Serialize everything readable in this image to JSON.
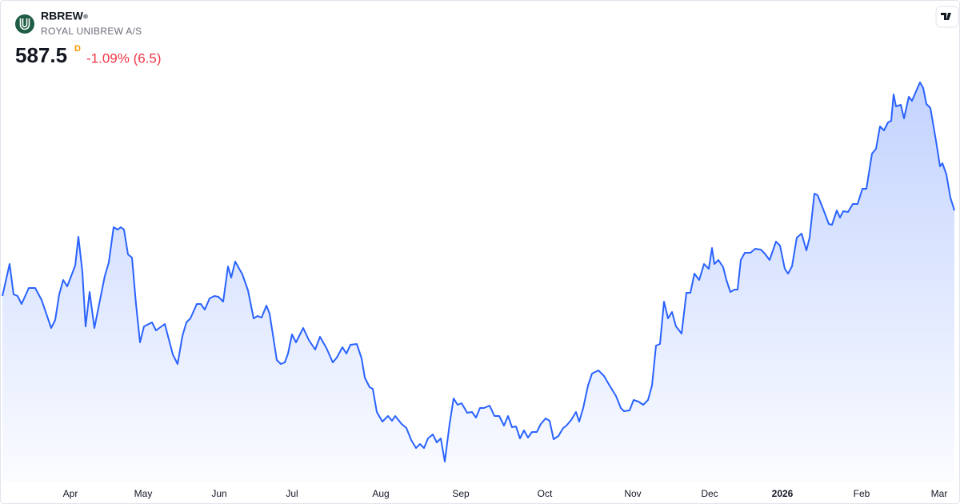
{
  "header": {
    "symbol": "RBREW",
    "name": "ROYAL UNIBREW A/S",
    "price": "587.5",
    "interval": "D",
    "change": "-1.09% (6.5)"
  },
  "chart_data": {
    "type": "area",
    "color": "#2962ff",
    "xlim": [
      0,
      238
    ],
    "ylim": [
      500,
      640
    ],
    "xticks": [
      {
        "value": 17,
        "label": "Apr"
      },
      {
        "value": 35.2,
        "label": "May"
      },
      {
        "value": 54.2,
        "label": "Jun"
      },
      {
        "value": 72.4,
        "label": "Jul"
      },
      {
        "value": 94.6,
        "label": "Aug"
      },
      {
        "value": 114.6,
        "label": "Sep"
      },
      {
        "value": 135.6,
        "label": "Oct"
      },
      {
        "value": 157.6,
        "label": "Nov"
      },
      {
        "value": 176.8,
        "label": "Dec"
      },
      {
        "value": 195,
        "label": "2026"
      },
      {
        "value": 214.8,
        "label": "Feb"
      },
      {
        "value": 234.2,
        "label": "Mar"
      }
    ],
    "x": [
      0,
      1.8,
      2.8,
      3.8,
      4.8,
      6.6,
      8.2,
      9.8,
      12.2,
      13.2,
      14.2,
      15.2,
      16.2,
      18.2,
      19,
      20,
      20.8,
      21.8,
      23,
      25.6,
      26.6,
      27.8,
      28.8,
      29.6,
      30.4,
      31.4,
      32.4,
      33.4,
      34.4,
      35.4,
      37.4,
      38.4,
      40.6,
      42.6,
      43.8,
      45,
      46,
      47,
      48.6,
      49.6,
      50.6,
      51.8,
      53,
      54,
      55.2,
      56.4,
      57.2,
      58.2,
      60,
      61.4,
      62.8,
      63.8,
      64.8,
      66,
      66.8,
      68.6,
      69.6,
      70.6,
      71.4,
      72.4,
      73.4,
      75.2,
      76.6,
      78.2,
      79.4,
      81,
      82.6,
      83.6,
      85,
      86,
      87,
      88.6,
      89.8,
      90.6,
      91.8,
      92.6,
      93.6,
      95,
      96.4,
      97.4,
      98.2,
      99.8,
      101,
      102.2,
      103.4,
      104.4,
      105.4,
      106.4,
      107.6,
      108.6,
      109.6,
      110.6,
      111.8,
      112.8,
      113.8,
      114.8,
      116.2,
      117.4,
      118.4,
      119.4,
      120.4,
      121.8,
      123,
      124.2,
      125.4,
      126.4,
      127.4,
      128.4,
      129.4,
      130.4,
      131.4,
      132.4,
      133.6,
      134.6,
      135.8,
      136.8,
      137.8,
      139,
      140.2,
      141,
      142.2,
      143.4,
      144.2,
      145.2,
      146.4,
      147.4,
      149,
      150.4,
      151.8,
      153.4,
      154.6,
      155.4,
      156.8,
      157.8,
      159,
      160.2,
      161.4,
      162.4,
      163.4,
      164.4,
      165.4,
      166.4,
      167.4,
      168.4,
      169.8,
      171,
      172,
      173,
      174.2,
      175.4,
      176.6,
      177.4,
      178,
      179,
      180.2,
      181,
      182,
      183,
      183.8,
      184.6,
      185.6,
      187,
      188.2,
      189.6,
      190.6,
      191.8,
      193.4,
      194.4,
      195.6,
      196.4,
      197.4,
      198.6,
      199.8,
      201,
      201.8,
      203,
      203.8,
      205.4,
      206.6,
      207.4,
      208.6,
      209.4,
      210.2,
      211.4,
      212.6,
      213.8,
      215,
      216,
      217.4,
      218.4,
      219.4,
      220.4,
      221.4,
      222.2,
      222.8,
      223.4,
      224.6,
      225.4,
      226.6,
      227.4,
      228.6,
      229.4,
      230.2,
      231,
      232,
      233.4,
      234.4,
      235,
      236,
      237,
      238
    ],
    "values": [
      560.75,
      570.75,
      561.25,
      560.75,
      558.25,
      563.25,
      563.25,
      559.5,
      550.75,
      553.25,
      561.25,
      565.75,
      563.75,
      570.25,
      579.25,
      568.25,
      551.25,
      562,
      550.75,
      567,
      571.25,
      582.25,
      581.5,
      582.25,
      581.5,
      573.75,
      572.75,
      558.25,
      546.25,
      551.25,
      552.5,
      550,
      552,
      542.5,
      539.5,
      548.25,
      552.5,
      553.75,
      558.25,
      558.25,
      556.5,
      560,
      560.75,
      560.5,
      559,
      570,
      566.5,
      571.5,
      567.5,
      562.5,
      553.75,
      554.5,
      554,
      557.75,
      555.25,
      540.75,
      539.5,
      540,
      542.75,
      548.75,
      546.25,
      550.75,
      547,
      544,
      548,
      544.5,
      540,
      541.5,
      544.75,
      542.75,
      545.5,
      545.75,
      541.25,
      535.25,
      532.25,
      531.75,
      524.5,
      521.5,
      523.25,
      521.75,
      523.25,
      520.75,
      519.5,
      515.75,
      513.25,
      514.5,
      513.25,
      516.25,
      517.5,
      515,
      516.25,
      509,
      520.75,
      528.75,
      526.75,
      527.25,
      524.25,
      524.5,
      522.75,
      525.75,
      525.75,
      526.5,
      523.25,
      523.25,
      520.25,
      523.25,
      519.75,
      520,
      516.25,
      518.75,
      516.5,
      518.25,
      518.25,
      520.75,
      522.5,
      521.75,
      516,
      517,
      519.5,
      520.25,
      522,
      524.5,
      521.5,
      525.75,
      532.75,
      536.5,
      537.5,
      535.75,
      532.75,
      529.5,
      525.75,
      524.75,
      525,
      528.25,
      527.75,
      526.75,
      528.25,
      532.75,
      545.25,
      545.75,
      559,
      553.75,
      555.75,
      551.25,
      549,
      561.75,
      561.75,
      567.75,
      565.75,
      570.75,
      569.25,
      575.75,
      570.75,
      572,
      569.75,
      565.75,
      562,
      562.75,
      562.75,
      572,
      574.25,
      574.25,
      575.5,
      575.25,
      574,
      572,
      577.75,
      576.5,
      569.25,
      567.75,
      570,
      579,
      580.25,
      575,
      579,
      592.75,
      592.25,
      587.25,
      583.25,
      583,
      587.5,
      585.25,
      587.25,
      587,
      589.5,
      589.5,
      594.25,
      594.25,
      605.25,
      606.75,
      613.75,
      612.5,
      615,
      615.5,
      623.75,
      620,
      620.5,
      616.25,
      623,
      621.75,
      625.25,
      627.5,
      625.75,
      620.75,
      619.5,
      609.25,
      601.25,
      602.25,
      598.75,
      591.5,
      587.5
    ]
  }
}
